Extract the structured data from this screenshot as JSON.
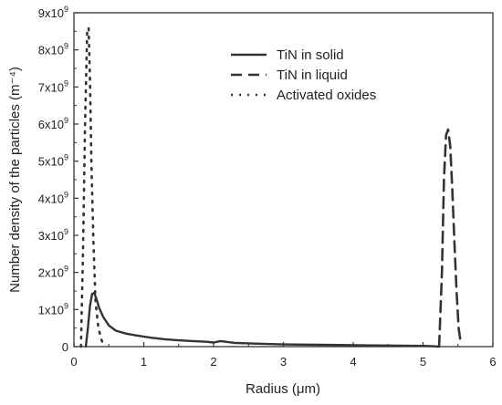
{
  "chart_data": {
    "type": "line",
    "xlabel": "Radius (μm)",
    "ylabel": "Number density of the particles (m⁻⁴)",
    "xlim": [
      0,
      6
    ],
    "ylim": [
      0,
      9000000000
    ],
    "x_ticks": [
      0,
      1,
      2,
      3,
      4,
      5,
      6
    ],
    "x_tick_labels": [
      "0",
      "1",
      "2",
      "3",
      "4",
      "5",
      "6"
    ],
    "y_ticks": [
      0,
      1000000000,
      2000000000,
      3000000000,
      4000000000,
      5000000000,
      6000000000,
      7000000000,
      8000000000,
      9000000000
    ],
    "y_tick_mantissas": [
      "0",
      "1",
      "2",
      "3",
      "4",
      "5",
      "6",
      "7",
      "8",
      "9"
    ],
    "y_tick_base": "x10",
    "y_tick_exponent": "9",
    "grid": false,
    "legend_position": "top-right",
    "series": [
      {
        "name": "TiN in solid",
        "style": "solid",
        "color": "#333333",
        "x": [
          0.17,
          0.2,
          0.23,
          0.26,
          0.29,
          0.32,
          0.36,
          0.42,
          0.5,
          0.6,
          0.75,
          0.9,
          1.1,
          1.3,
          1.5,
          1.7,
          1.9,
          2.0,
          2.1,
          2.3,
          2.6,
          3.0,
          3.5,
          4.0,
          4.5,
          5.0,
          5.15,
          5.22
        ],
        "y": [
          0,
          500000000,
          1100000000,
          1420000000,
          1450000000,
          1300000000,
          1050000000,
          800000000,
          570000000,
          430000000,
          350000000,
          300000000,
          240000000,
          200000000,
          170000000,
          150000000,
          130000000,
          110000000,
          150000000,
          100000000,
          80000000,
          60000000,
          50000000,
          40000000,
          30000000,
          20000000,
          10000000,
          0
        ]
      },
      {
        "name": "TiN in liquid",
        "style": "dashed",
        "color": "#333333",
        "x": [
          5.23,
          5.27,
          5.3,
          5.33,
          5.36,
          5.39,
          5.42,
          5.45,
          5.48,
          5.51,
          5.54
        ],
        "y": [
          0,
          2000000000,
          4500000000,
          5700000000,
          5850000000,
          5400000000,
          4200000000,
          2800000000,
          1500000000,
          500000000,
          100000000
        ]
      },
      {
        "name": "Activated oxides",
        "style": "dotted",
        "color": "#333333",
        "x": [
          0.1,
          0.13,
          0.16,
          0.19,
          0.21,
          0.23,
          0.25,
          0.28,
          0.31,
          0.35,
          0.4,
          0.45
        ],
        "y": [
          0,
          2500000000,
          6000000000,
          8500000000,
          8600000000,
          7200000000,
          5000000000,
          2800000000,
          1200000000,
          500000000,
          150000000,
          0
        ]
      }
    ]
  }
}
